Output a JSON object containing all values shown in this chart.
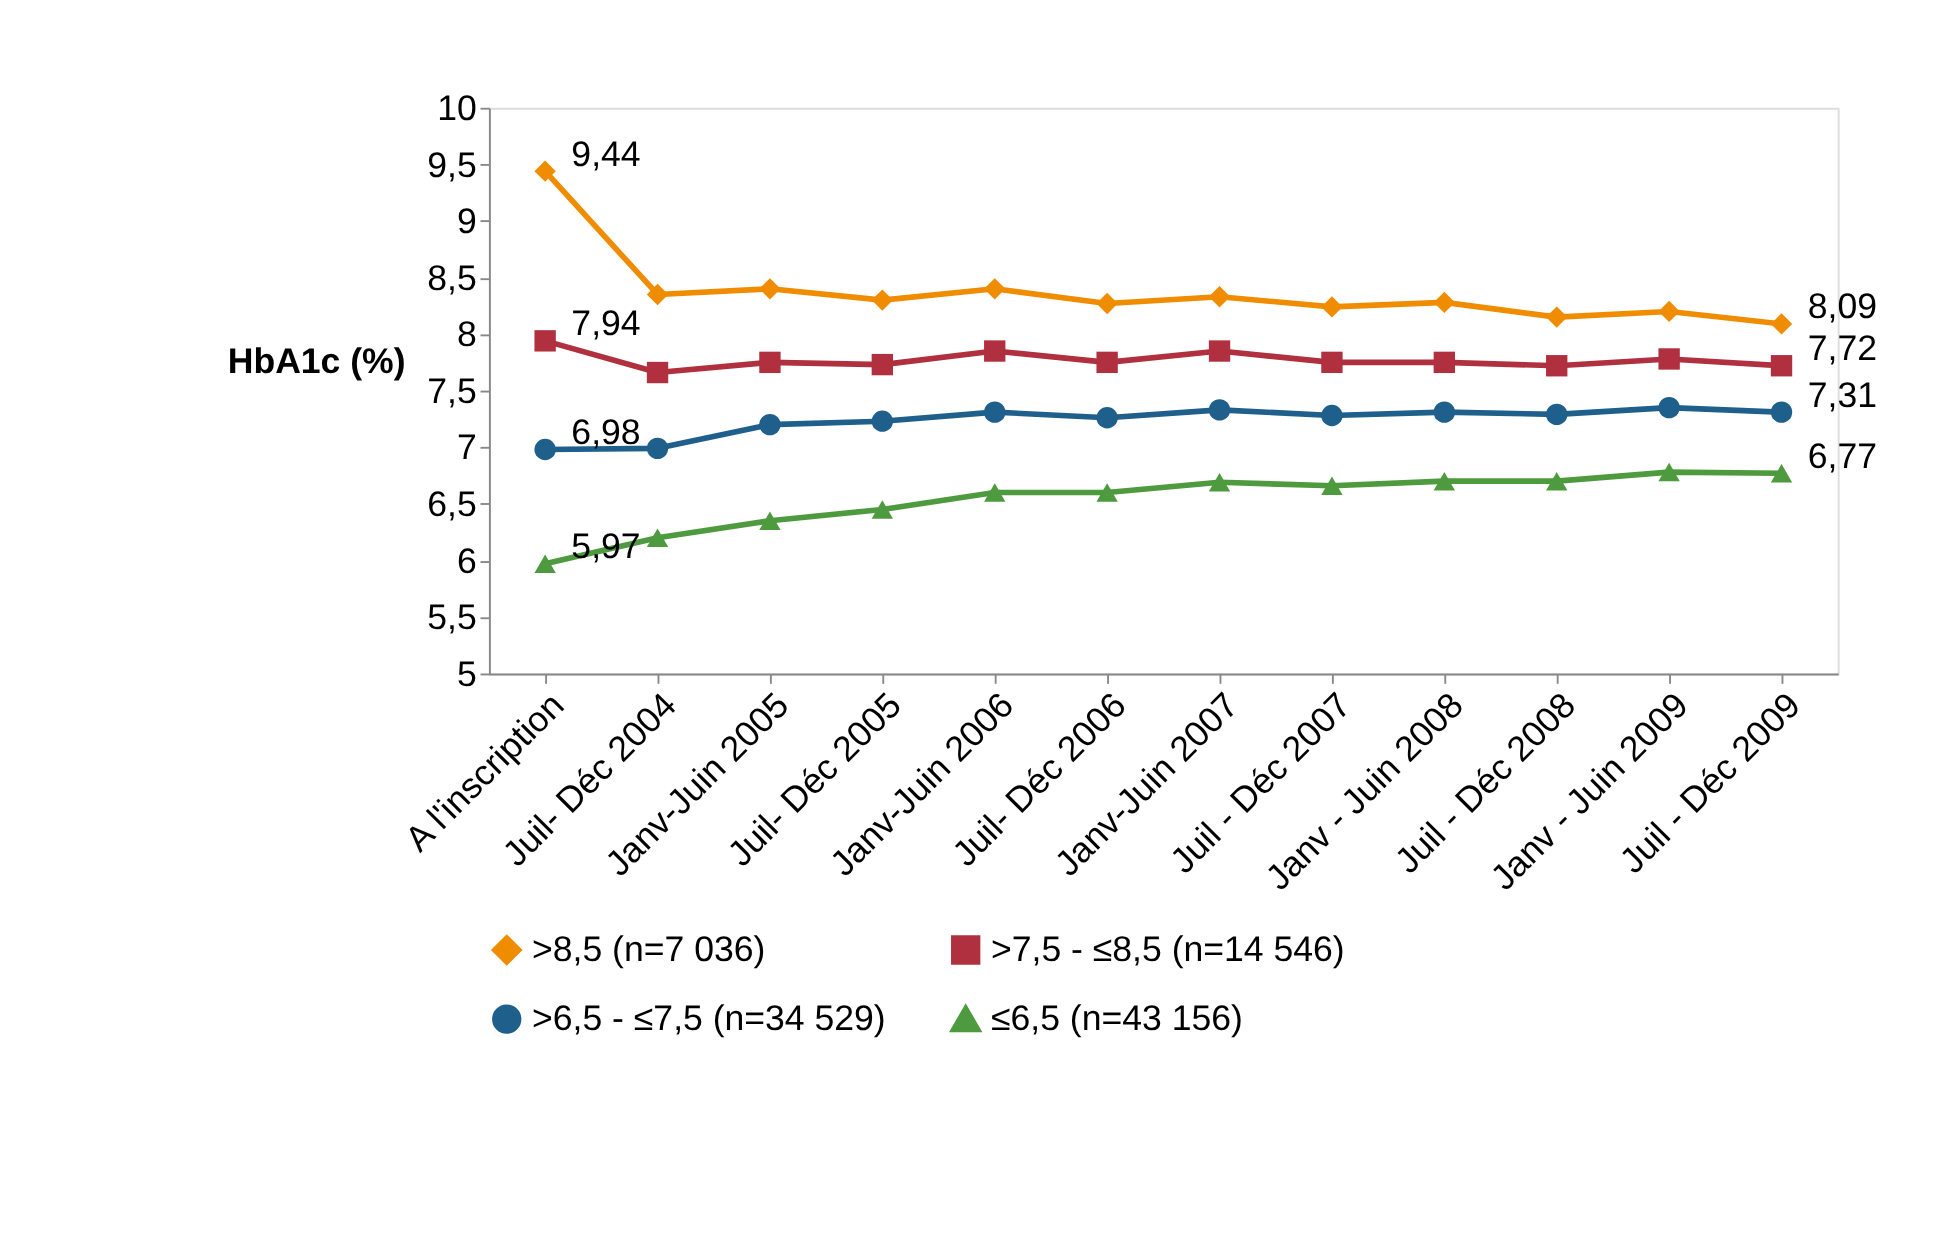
{
  "chart_data": {
    "type": "line",
    "ylabel": "HbA1c (%)",
    "categories": [
      "A l'inscription",
      "Juil- Déc 2004",
      "Janv-Juin 2005",
      "Juil- Déc 2005",
      "Janv-Juin 2006",
      "Juil- Déc 2006",
      "Janv-Juin 2007",
      "Juil - Déc 2007",
      "Janv - Juin 2008",
      "Juil - Déc 2008",
      "Janv - Juin 2009",
      "Juil - Déc 2009"
    ],
    "series": [
      {
        "name": ">8,5 (n=7 036)",
        "color": "#f08c00",
        "marker": "diamond",
        "values": [
          9.44,
          8.35,
          8.4,
          8.3,
          8.4,
          8.27,
          8.33,
          8.24,
          8.28,
          8.15,
          8.2,
          8.09
        ],
        "value_labels": [
          "9,44",
          null,
          null,
          null,
          null,
          null,
          null,
          null,
          null,
          null,
          null,
          "8,09"
        ]
      },
      {
        "name": ">7,5 - ≤8,5 (n=14 546)",
        "color": "#b0303f",
        "marker": "square",
        "values": [
          7.94,
          7.66,
          7.75,
          7.73,
          7.85,
          7.75,
          7.85,
          7.75,
          7.75,
          7.72,
          7.78,
          7.72
        ],
        "value_labels": [
          "7,94",
          null,
          null,
          null,
          null,
          null,
          null,
          null,
          null,
          null,
          null,
          "7,72"
        ]
      },
      {
        "name": ">6,5 - ≤7,5 (n=34 529)",
        "color": "#1f5f8b",
        "marker": "circle",
        "values": [
          6.98,
          6.99,
          7.2,
          7.23,
          7.31,
          7.26,
          7.33,
          7.28,
          7.31,
          7.29,
          7.35,
          7.31
        ],
        "value_labels": [
          "6,98",
          null,
          null,
          null,
          null,
          null,
          null,
          null,
          null,
          null,
          null,
          "7,31"
        ]
      },
      {
        "name": "≤6,5 (n=43 156)",
        "color": "#4e9a3e",
        "marker": "triangle",
        "values": [
          5.97,
          6.2,
          6.35,
          6.45,
          6.6,
          6.6,
          6.69,
          6.66,
          6.7,
          6.7,
          6.78,
          6.77
        ],
        "value_labels": [
          "5,97",
          null,
          null,
          null,
          null,
          null,
          null,
          null,
          null,
          null,
          null,
          "6,77"
        ]
      }
    ],
    "ylim": [
      5,
      10
    ],
    "yticks": [
      5,
      {
        "value": 5.5,
        "label": "5,5"
      },
      6,
      {
        "value": 6.5,
        "label": "6,5"
      },
      7,
      {
        "value": 7.5,
        "label": "7,5"
      },
      8,
      {
        "value": 8.5,
        "label": "8,5"
      },
      9,
      {
        "value": 9.5,
        "label": "9,5"
      },
      10
    ],
    "grid": false,
    "legend": "bottom",
    "line_style": "solid"
  }
}
